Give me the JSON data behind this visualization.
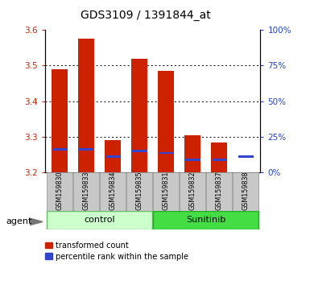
{
  "title": "GDS3109 / 1391844_at",
  "samples": [
    "GSM159830",
    "GSM159833",
    "GSM159834",
    "GSM159835",
    "GSM159831",
    "GSM159832",
    "GSM159837",
    "GSM159838"
  ],
  "red_values": [
    3.49,
    3.575,
    3.29,
    3.52,
    3.485,
    3.305,
    3.285,
    3.2
  ],
  "blue_values": [
    3.265,
    3.265,
    3.245,
    3.26,
    3.255,
    3.235,
    3.235,
    3.245
  ],
  "ylim": [
    3.2,
    3.6
  ],
  "yticks_left": [
    3.2,
    3.3,
    3.4,
    3.5,
    3.6
  ],
  "yticks_right": [
    0,
    25,
    50,
    75,
    100
  ],
  "bar_color": "#cc2200",
  "blue_color": "#3344cc",
  "base": 3.2,
  "bar_width": 0.6,
  "legend_red": "transformed count",
  "legend_blue": "percentile rank within the sample",
  "left_tick_color": "#cc2200",
  "right_tick_color": "#2244cc",
  "bg_control": "#ccffcc",
  "bg_sunitinib": "#44dd44",
  "bg_xticklabel": "#c8c8c8"
}
